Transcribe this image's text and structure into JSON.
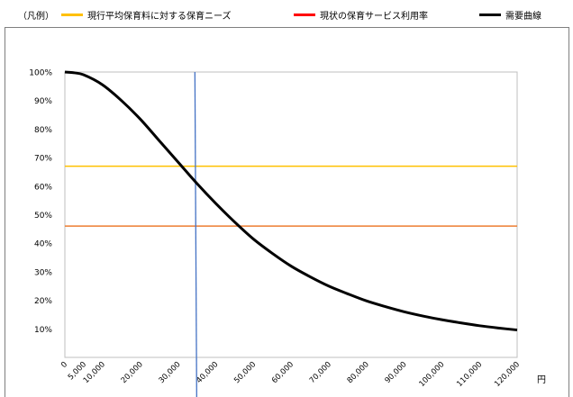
{
  "legend": {
    "prefix": "（凡例）",
    "items": [
      {
        "label": "現行平均保育料に対する保育ニーズ",
        "color": "#FFC000"
      },
      {
        "label": "現状の保育サービス利用率",
        "color": "#FF0000"
      },
      {
        "label": "需要曲線",
        "color": "#000000"
      }
    ]
  },
  "chart_data": {
    "type": "line",
    "xlabel": "円",
    "ylabel": "",
    "title": "",
    "xlim": [
      0,
      120000
    ],
    "ylim": [
      0,
      100
    ],
    "x_ticks": [
      0,
      5000,
      10000,
      20000,
      30000,
      40000,
      50000,
      60000,
      70000,
      80000,
      90000,
      100000,
      110000,
      120000
    ],
    "x_tick_labels": [
      "0",
      "5,000",
      "10,000",
      "20,000",
      "30,000",
      "40,000",
      "50,000",
      "60,000",
      "70,000",
      "80,000",
      "90,000",
      "100,000",
      "110,000",
      "120,000"
    ],
    "y_ticks": [
      10,
      20,
      30,
      40,
      50,
      60,
      70,
      80,
      90,
      100
    ],
    "y_tick_labels": [
      "10%",
      "20%",
      "30%",
      "40%",
      "50%",
      "60%",
      "70%",
      "80%",
      "90%",
      "100%"
    ],
    "grid": false,
    "series": [
      {
        "name": "需要曲線",
        "color": "#000000",
        "x": [
          0,
          2000,
          5000,
          10000,
          15000,
          20000,
          25000,
          30000,
          35000,
          40000,
          45000,
          50000,
          55000,
          60000,
          65000,
          70000,
          75000,
          80000,
          85000,
          90000,
          95000,
          100000,
          105000,
          110000,
          115000,
          120000
        ],
        "y": [
          100,
          99.8,
          99,
          95.5,
          90,
          83.5,
          76,
          68.5,
          61,
          54,
          47.5,
          41.5,
          36.5,
          32,
          28.3,
          25,
          22.3,
          19.8,
          17.8,
          16,
          14.5,
          13.2,
          12.1,
          11.1,
          10.3,
          9.6
        ]
      }
    ],
    "reference_lines": [
      {
        "name": "現行平均保育料に対する保育ニーズ",
        "orientation": "horizontal",
        "value": 67,
        "color": "#FFC000"
      },
      {
        "name": "現状の保育サービス利用率",
        "orientation": "horizontal",
        "value": 46,
        "color": "#ED7D31"
      },
      {
        "name": "",
        "orientation": "vertical",
        "value": 34500,
        "color": "#4472C4"
      }
    ]
  }
}
